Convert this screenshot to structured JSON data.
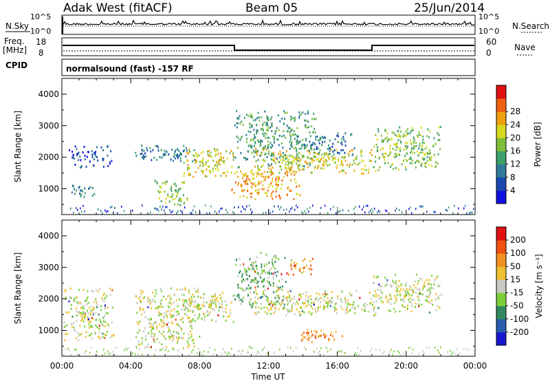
{
  "header": {
    "station": "Adak West (fitACF)",
    "beam": "Beam 05",
    "date": "25/Jun/2014"
  },
  "strips": {
    "nsky_label": "N.Sky",
    "nsearch_label": "N.Search",
    "noise_ticks_top": "10^5",
    "noise_ticks_bottom": "10^0",
    "freq_label": "Freq.",
    "freq_unit": "[MHz]",
    "freq_ticks": [
      "18",
      "8"
    ],
    "nave_label": "Nave",
    "nave_ticks": [
      "60",
      "0"
    ],
    "cpid_label": "CPID",
    "cpid_text": "normalsound (fast) -157 RF"
  },
  "chart_data": [
    {
      "type": "heatmap",
      "panel": "power",
      "ylabel": "Slant Range [km]",
      "xlabel": "Time UT",
      "x_ticks": [
        "00:00",
        "04:00",
        "08:00",
        "12:00",
        "16:00",
        "20:00",
        "00:00"
      ],
      "y_ticks": [
        1000,
        2000,
        3000,
        4000
      ],
      "xlim_hours": [
        0,
        24
      ],
      "ylim_km": [
        180,
        4500
      ],
      "colorbar": {
        "label": "Power [dB]",
        "ticks": [
          "4",
          "8",
          "12",
          "16",
          "20",
          "24",
          "28"
        ],
        "colors": [
          "#1010e0",
          "#1848b0",
          "#2f7a98",
          "#3d9f6a",
          "#7dbe3a",
          "#d8d820",
          "#f0a010",
          "#f06010",
          "#e01010"
        ]
      },
      "echo_regions": [
        {
          "t0": 0.1,
          "t1": 1.9,
          "r0": 750,
          "r1": 1150,
          "level": 2
        },
        {
          "t0": 0.3,
          "t1": 3.0,
          "r0": 1700,
          "r1": 2400,
          "level": 1
        },
        {
          "t0": 4.2,
          "t1": 7.9,
          "r0": 1900,
          "r1": 2400,
          "level": 2
        },
        {
          "t0": 5.3,
          "t1": 7.3,
          "r0": 500,
          "r1": 1300,
          "level": 4
        },
        {
          "t0": 7.0,
          "t1": 10.0,
          "r0": 1400,
          "r1": 2300,
          "level": 5
        },
        {
          "t0": 9.7,
          "t1": 13.8,
          "r0": 700,
          "r1": 1700,
          "level": 6
        },
        {
          "t0": 10.0,
          "t1": 14.8,
          "r0": 1700,
          "r1": 3500,
          "level": 3
        },
        {
          "t0": 11.0,
          "t1": 18.5,
          "r0": 1500,
          "r1": 2300,
          "level": 5
        },
        {
          "t0": 14.0,
          "t1": 17.0,
          "r0": 2100,
          "r1": 2800,
          "level": 2
        },
        {
          "t0": 18.0,
          "t1": 22.0,
          "r0": 1600,
          "r1": 3000,
          "level": 4
        }
      ]
    },
    {
      "type": "heatmap",
      "panel": "velocity",
      "ylabel": "Slant Range [km]",
      "xlabel": "Time UT",
      "x_ticks": [
        "00:00",
        "04:00",
        "08:00",
        "12:00",
        "16:00",
        "20:00",
        "00:00"
      ],
      "y_ticks": [
        1000,
        2000,
        3000,
        4000
      ],
      "xlim_hours": [
        0,
        24
      ],
      "ylim_km": [
        180,
        4500
      ],
      "colorbar": {
        "label": "Velocity [m s⁻¹]",
        "ticks": [
          "200",
          "100",
          "50",
          "15",
          "-15",
          "-50",
          "-100",
          "-200"
        ],
        "colors": [
          "#1818d0",
          "#2a5db0",
          "#2f8a5e",
          "#7ccf3a",
          "#c8c8c0",
          "#f0c030",
          "#f09020",
          "#f05010",
          "#e01010"
        ]
      },
      "echo_regions": [
        {
          "t0": 0.1,
          "t1": 3.0,
          "r0": 700,
          "r1": 2400,
          "level": 4
        },
        {
          "t0": 4.2,
          "t1": 8.0,
          "r0": 500,
          "r1": 2400,
          "level": 4
        },
        {
          "t0": 7.0,
          "t1": 10.0,
          "r0": 1300,
          "r1": 2300,
          "level": 4
        },
        {
          "t0": 10.0,
          "t1": 13.0,
          "r0": 1700,
          "r1": 3500,
          "level": 3
        },
        {
          "t0": 11.0,
          "t1": 18.5,
          "r0": 1500,
          "r1": 2300,
          "level": 4
        },
        {
          "t0": 13.0,
          "t1": 14.6,
          "r0": 2800,
          "r1": 3300,
          "level": 6
        },
        {
          "t0": 13.7,
          "t1": 16.3,
          "r0": 650,
          "r1": 1050,
          "level": 6
        },
        {
          "t0": 18.0,
          "t1": 22.0,
          "r0": 1600,
          "r1": 2800,
          "level": 4
        }
      ]
    }
  ]
}
